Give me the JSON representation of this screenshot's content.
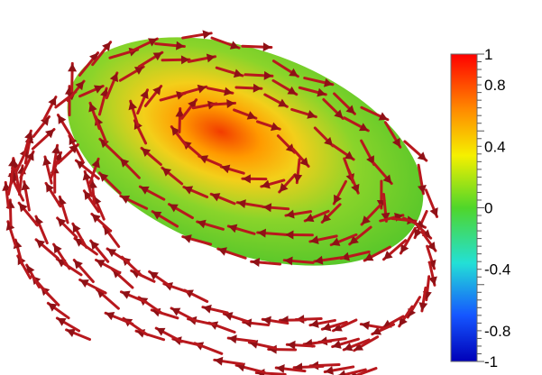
{
  "colorbar": {
    "ticks": [
      {
        "label": "1",
        "value": 1.0
      },
      {
        "label": "0.8",
        "value": 0.8
      },
      {
        "label": "0.4",
        "value": 0.4
      },
      {
        "label": "0",
        "value": 0.0
      },
      {
        "label": "-0.4",
        "value": -0.4
      },
      {
        "label": "-0.8",
        "value": -0.8
      },
      {
        "label": "-1",
        "value": -1.0
      }
    ],
    "range": [
      -1,
      1
    ],
    "colors": [
      "#ff0000",
      "#ff8a00",
      "#f5f000",
      "#4fd62a",
      "#23e0d6",
      "#1556ff",
      "#0000b8"
    ]
  },
  "scene": {
    "disk_colors": {
      "edge": "#52c52a",
      "center": "#f23c00",
      "ring": "#f3cf1a"
    },
    "arrow_color": "#b8181d",
    "arrowhead_color": "#8f1116",
    "arrows": [
      {
        "ring": "top-outer",
        "count": 34
      },
      {
        "ring": "top-mid",
        "count": 30
      },
      {
        "ring": "inner-core",
        "count": 16
      },
      {
        "ring": "bottom-outer",
        "count": 30
      },
      {
        "ring": "bottom-mid",
        "count": 28
      },
      {
        "ring": "bottom-inner",
        "count": 20
      }
    ]
  }
}
